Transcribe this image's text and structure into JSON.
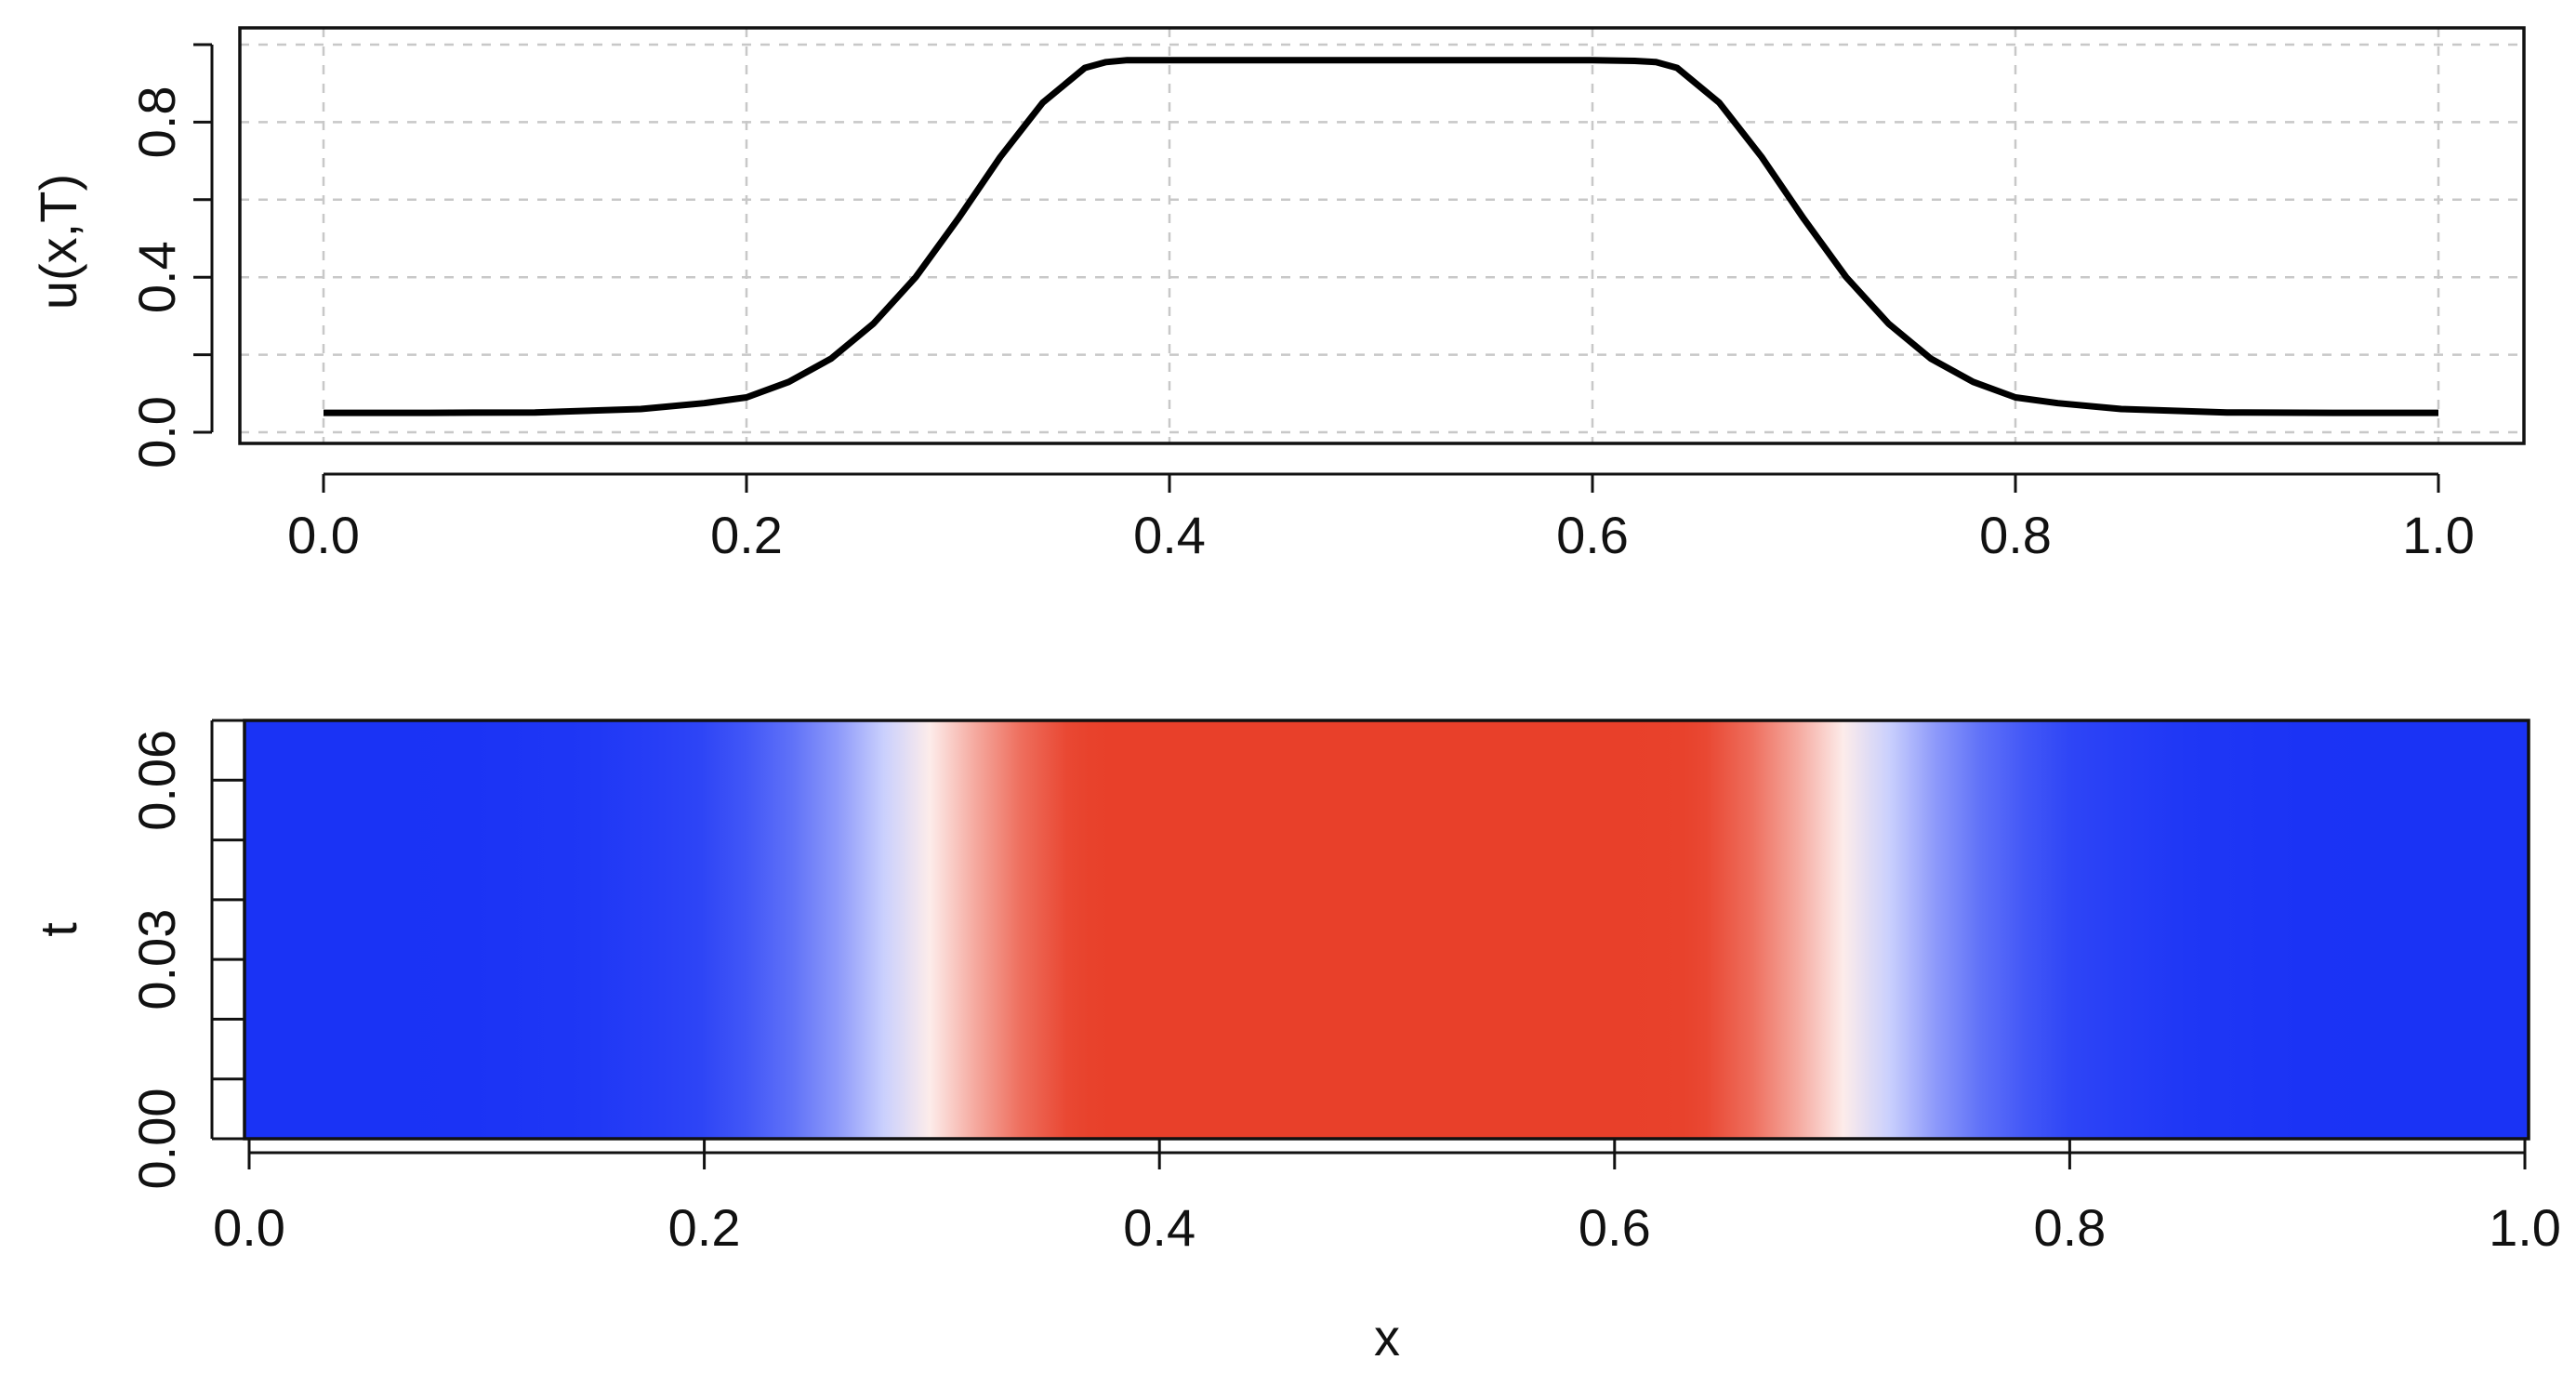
{
  "chart_data": [
    {
      "type": "line",
      "title": "",
      "xlabel": "",
      "ylabel": "u(x,T)",
      "xlim": [
        0.0,
        1.0
      ],
      "ylim": [
        0.0,
        1.0
      ],
      "grid": true,
      "x_ticks": [
        "0.0",
        "0.2",
        "0.4",
        "0.6",
        "0.8",
        "1.0"
      ],
      "y_ticks": [
        "0.0",
        "0.4",
        "0.8"
      ],
      "series": [
        {
          "color": "#000000",
          "x": [
            0.0,
            0.05,
            0.1,
            0.15,
            0.18,
            0.2,
            0.22,
            0.24,
            0.26,
            0.28,
            0.3,
            0.32,
            0.34,
            0.36,
            0.37,
            0.38,
            0.4,
            0.5,
            0.6,
            0.62,
            0.63,
            0.64,
            0.66,
            0.68,
            0.7,
            0.72,
            0.74,
            0.76,
            0.78,
            0.8,
            0.82,
            0.85,
            0.9,
            0.95,
            1.0
          ],
          "y": [
            0.05,
            0.05,
            0.051,
            0.06,
            0.075,
            0.09,
            0.13,
            0.19,
            0.28,
            0.4,
            0.55,
            0.71,
            0.85,
            0.94,
            0.955,
            0.96,
            0.96,
            0.96,
            0.96,
            0.958,
            0.955,
            0.94,
            0.85,
            0.71,
            0.55,
            0.4,
            0.28,
            0.19,
            0.13,
            0.09,
            0.075,
            0.06,
            0.051,
            0.05,
            0.05
          ]
        }
      ]
    },
    {
      "type": "heatmap",
      "title": "",
      "xlabel": "x",
      "ylabel": "t",
      "xlim": [
        0.0,
        1.0
      ],
      "ylim": [
        0.0,
        0.07
      ],
      "x_ticks": [
        "0.0",
        "0.2",
        "0.4",
        "0.6",
        "0.8",
        "1.0"
      ],
      "y_ticks": [
        "0.00",
        "0.03",
        "0.06"
      ],
      "colorscale": {
        "low": "#1a33f5",
        "mid": "#ffffff",
        "high": "#e8402a"
      },
      "note_values_constant_in_t": true
    }
  ]
}
